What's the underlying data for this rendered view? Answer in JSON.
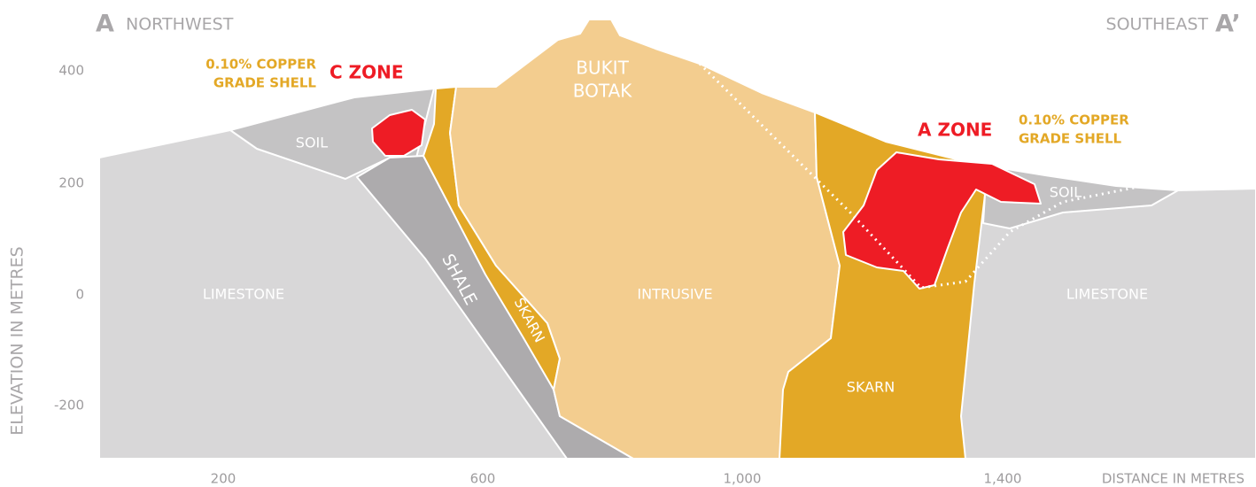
{
  "header": {
    "left_marker": "A",
    "left_direction": "NORTHWEST",
    "right_direction": "SOUTHEAST",
    "right_marker": "A’"
  },
  "y_axis": {
    "label": "ELEVATION IN METRES",
    "ticks": [
      "400",
      "200",
      "0",
      "-200"
    ]
  },
  "x_axis": {
    "label": "DISTANCE IN METRES",
    "ticks": [
      "200",
      "600",
      "1,000",
      "1,400"
    ]
  },
  "labels": {
    "limestone_left": "LIMESTONE",
    "limestone_right": "LIMESTONE",
    "soil_left": "SOIL",
    "soil_right": "SOIL",
    "intrusive": "INTRUSIVE",
    "skarn_right": "SKARN",
    "shale": "SHALE",
    "skarn_left": "SKARN",
    "peak": [
      "BUKIT",
      "BOTAK"
    ],
    "grade_shell_left": [
      "0.10% COPPER",
      "GRADE SHELL"
    ],
    "c_zone": "C ZONE",
    "a_zone": "A ZONE",
    "grade_shell_right": [
      "0.10% COPPER",
      "GRADE SHELL"
    ]
  }
}
